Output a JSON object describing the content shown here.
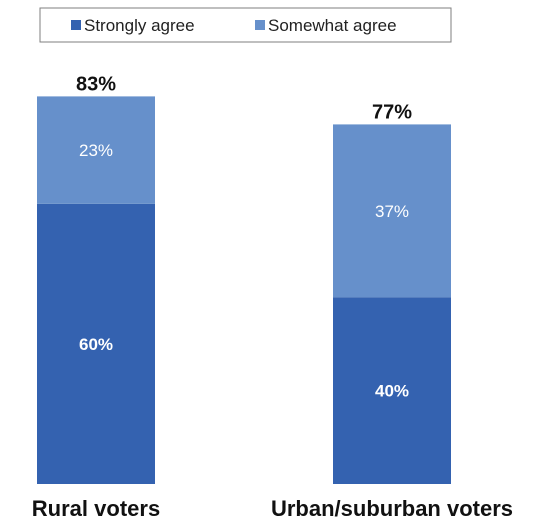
{
  "chart_data": {
    "type": "bar",
    "stacked": true,
    "categories": [
      "Rural voters",
      "Urban/suburban voters"
    ],
    "series": [
      {
        "name": "Strongly agree",
        "values": [
          60,
          40
        ],
        "labels": [
          "60%",
          "40%"
        ],
        "color": "#3462b0"
      },
      {
        "name": "Somewhat agree",
        "values": [
          23,
          37
        ],
        "labels": [
          "23%",
          "37%"
        ],
        "color": "#6690cb"
      }
    ],
    "totals": [
      83,
      77
    ],
    "total_labels": [
      "83%",
      "77%"
    ],
    "ylim": [
      0,
      100
    ],
    "grid": false,
    "legend": "top",
    "title": "",
    "xlabel": "",
    "ylabel": ""
  }
}
